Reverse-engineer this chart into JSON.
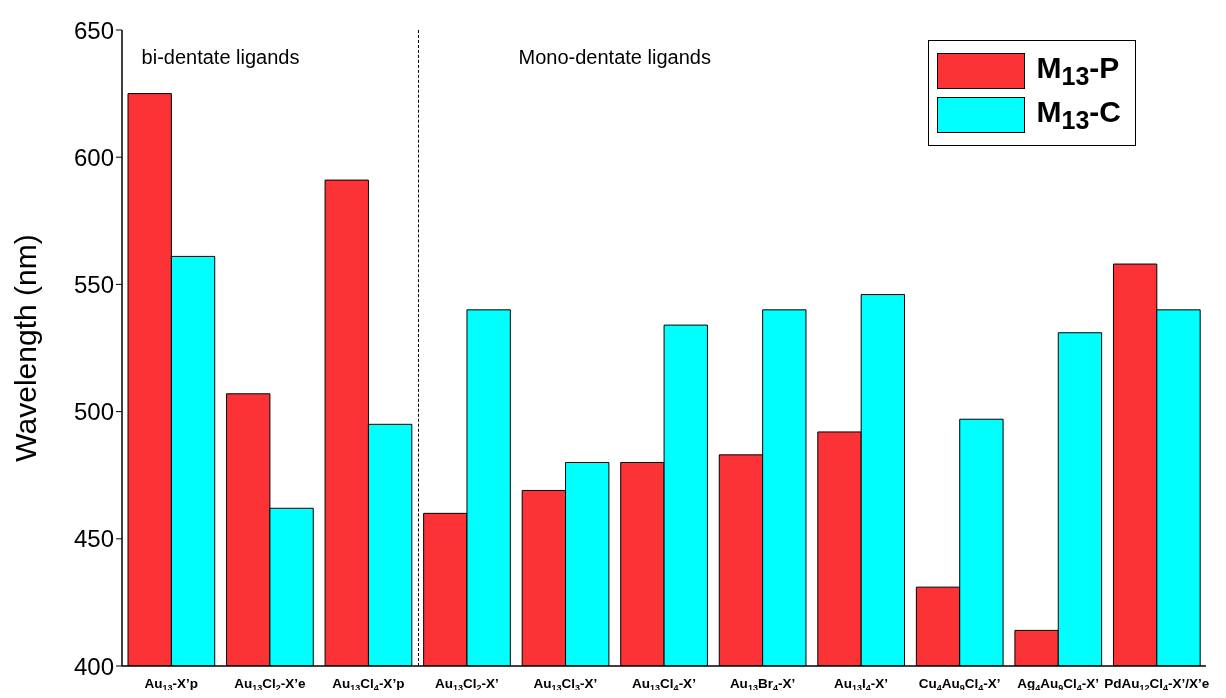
{
  "chart_data": {
    "type": "bar",
    "ylabel": "Wavelength (nm)",
    "categories": [
      "Au$_{13}$-X’p",
      "Au$_{13}$Cl$_{2}$-X’e",
      "Au$_{13}$Cl$_{4}$-X’p",
      "Au$_{13}$Cl$_{2}$-X’",
      "Au$_{13}$Cl$_{3}$-X’",
      "Au$_{13}$Cl$_{4}$-X’",
      "Au$_{13}$Br$_{4}$-X’",
      "Au$_{13}$I$_{4}$-X’",
      "Cu$_{4}$Au$_{9}$Cl$_{4}$-X’",
      "Ag$_{4}$Au$_{9}$Cl$_{4}$-X’",
      "PdAu$_{12}$Cl$_{4}$-X’/X’e"
    ],
    "series": [
      {
        "name": "M$_{13}$-P",
        "color": "#fc3336",
        "values": [
          625,
          507,
          591,
          460,
          469,
          480,
          483,
          492,
          431,
          414,
          558
        ]
      },
      {
        "name": "M$_{13}$-C",
        "color": "#00ffff",
        "values": [
          561,
          462,
          495,
          540,
          480,
          534,
          540,
          546,
          497,
          531,
          540
        ]
      }
    ],
    "ylim": [
      400,
      650
    ],
    "yticks": [
      400,
      450,
      500,
      550,
      600,
      650
    ],
    "legend": "top right",
    "annotations": [
      "bi-dentate ligands",
      "Mono-dentate ligands"
    ]
  }
}
